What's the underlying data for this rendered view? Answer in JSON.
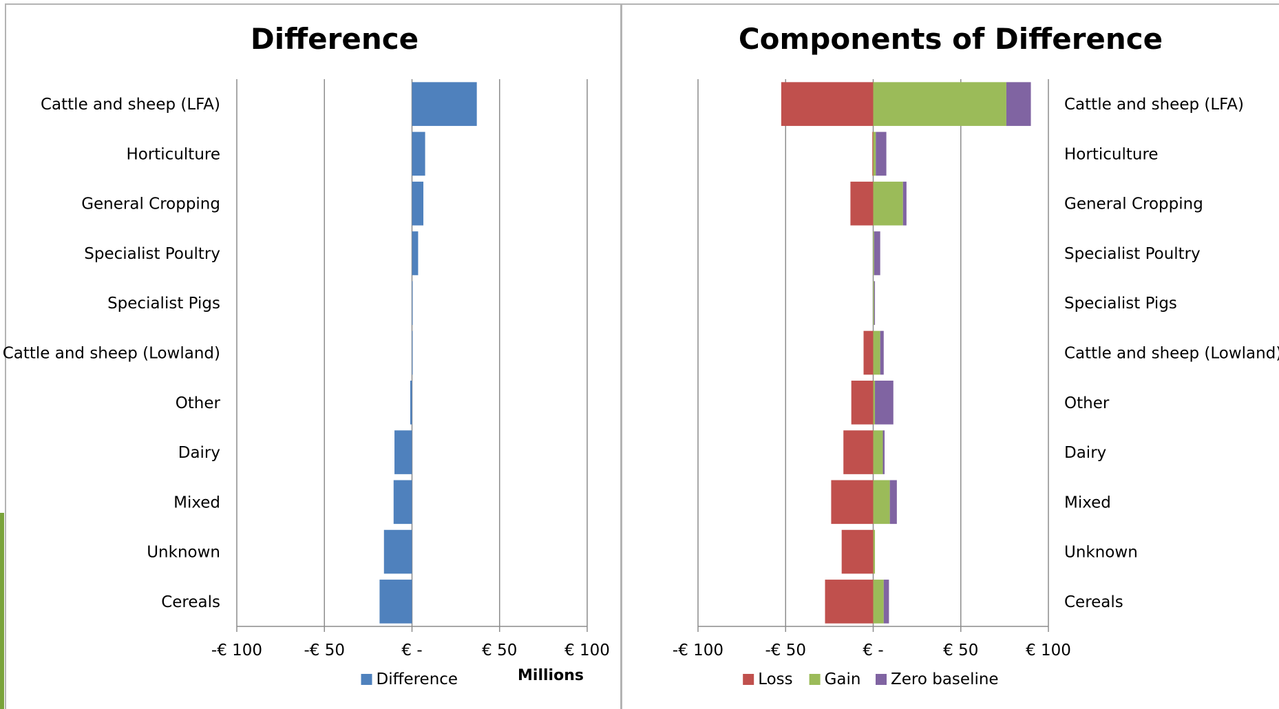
{
  "chart_data": [
    {
      "type": "bar",
      "orientation": "horizontal",
      "title": "Difference",
      "categories": [
        "Cattle and sheep (LFA)",
        "Horticulture",
        "General Cropping",
        "Specialist Poultry",
        "Specialist Pigs",
        "Cattle and sheep (Lowland)",
        "Other",
        "Dairy",
        "Mixed",
        "Unknown",
        "Cereals"
      ],
      "series": [
        {
          "name": "Difference",
          "color": "#4f81bd",
          "values": [
            37,
            7.5,
            6.5,
            3.5,
            0,
            0,
            -1,
            -10,
            -10.5,
            -16,
            -18.5
          ]
        }
      ],
      "xlim": [
        -100,
        100
      ],
      "x_ticks": [
        -100,
        -50,
        0,
        50,
        100
      ],
      "x_tick_labels": [
        "-€ 100",
        "-€ 50",
        "€ -",
        "€ 50",
        "€ 100"
      ],
      "xlabel": "Millions",
      "grid": true,
      "legend_position": "bottom",
      "category_label_side": "left"
    },
    {
      "type": "bar",
      "orientation": "horizontal",
      "stacked": true,
      "title": "Components of Difference",
      "categories": [
        "Cattle and sheep (LFA)",
        "Horticulture",
        "General Cropping",
        "Specialist Poultry",
        "Specialist Pigs",
        "Cattle and sheep (Lowland)",
        "Other",
        "Dairy",
        "Mixed",
        "Unknown",
        "Cereals"
      ],
      "series": [
        {
          "name": "Loss",
          "color": "#c0504d",
          "values": [
            -52.5,
            -0.5,
            -13,
            0,
            0,
            -5.5,
            -12.5,
            -17,
            -24,
            -18,
            -27.5
          ]
        },
        {
          "name": "Gain",
          "color": "#9bbb59",
          "values": [
            76,
            1.5,
            17,
            0.5,
            0.5,
            4,
            1,
            5.5,
            9.5,
            1,
            6
          ]
        },
        {
          "name": "Zero baseline",
          "color": "#8064a2",
          "values": [
            14,
            6,
            2,
            3.5,
            0.5,
            2,
            10.5,
            1,
            4,
            0,
            3
          ]
        }
      ],
      "xlim": [
        -100,
        100
      ],
      "x_ticks": [
        -100,
        -50,
        0,
        50,
        100
      ],
      "x_tick_labels": [
        "-€ 100",
        "-€ 50",
        "€ -",
        "€ 50",
        "€ 100"
      ],
      "grid": true,
      "legend_position": "bottom",
      "category_label_side": "right"
    }
  ]
}
